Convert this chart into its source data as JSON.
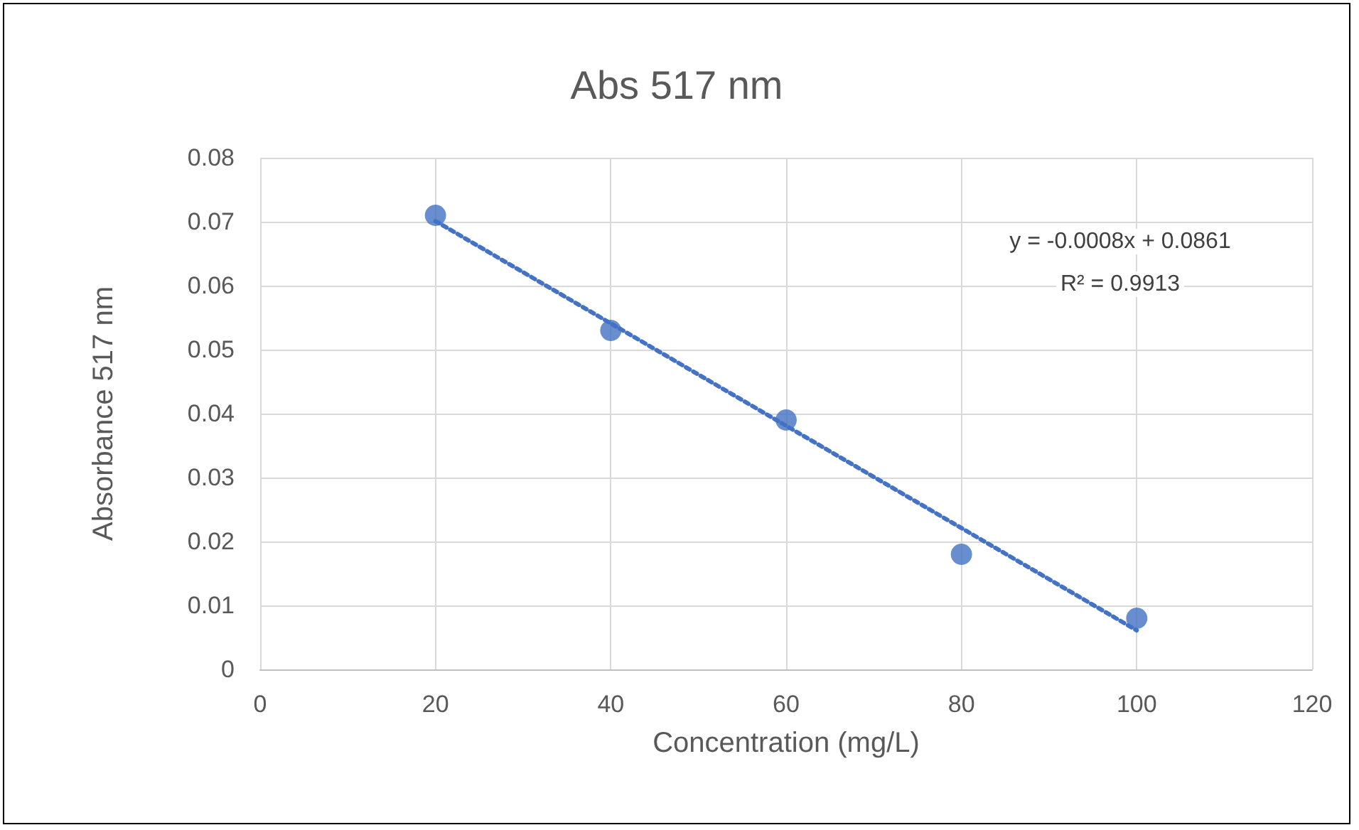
{
  "chart_data": {
    "type": "scatter",
    "title": "Abs 517 nm",
    "xlabel": "Concentration (mg/L)",
    "ylabel": "Absorbance 517 nm",
    "series": [
      {
        "color": "#4472c4",
        "x": [
          20,
          40,
          60,
          80,
          100
        ],
        "values": [
          0.071,
          0.053,
          0.039,
          0.018,
          0.008
        ],
        "marker": "circle"
      },
      {
        "type": "line",
        "color": "#4472c4",
        "x": [
          20,
          100
        ],
        "values": [
          0.0701,
          0.0061
        ],
        "line_style": "dotted",
        "marker": "none"
      }
    ],
    "annotations": [
      "y = -0.0008x + 0.0861",
      "R² = 0.9913"
    ],
    "xlim": [
      0,
      120
    ],
    "xticks": [
      0,
      20,
      40,
      60,
      80,
      100,
      120
    ],
    "ylim": [
      0,
      0.08
    ],
    "yticks": [
      0,
      0.01,
      0.02,
      0.03,
      0.04,
      0.05,
      0.06,
      0.07,
      0.08
    ],
    "grid": true
  }
}
